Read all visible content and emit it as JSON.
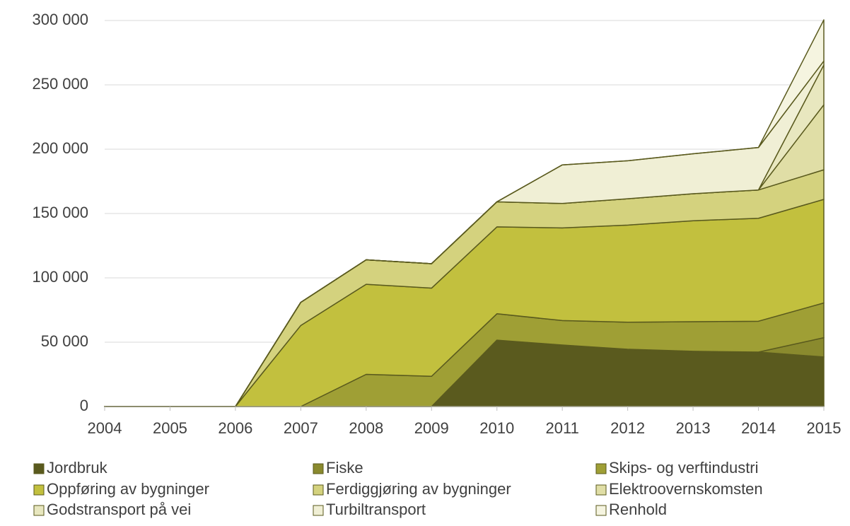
{
  "chart_data": {
    "type": "stacked_area",
    "categories": [
      "2004",
      "2005",
      "2006",
      "2007",
      "2008",
      "2009",
      "2010",
      "2011",
      "2012",
      "2013",
      "2014",
      "2015"
    ],
    "series": [
      {
        "name": "Jordbruk",
        "color": "#5a5a1e",
        "values": [
          0,
          0,
          0,
          0,
          0,
          0,
          51600,
          47800,
          44500,
          42900,
          42300,
          38500
        ]
      },
      {
        "name": "Fiske",
        "color": "#8a8a2e",
        "values": [
          0,
          0,
          0,
          0,
          0,
          0,
          0,
          0,
          0,
          0,
          0,
          15000
        ]
      },
      {
        "name": "Skips- og verftindustri",
        "color": "#9f9f35",
        "values": [
          0,
          0,
          0,
          0,
          25000,
          23500,
          20500,
          19000,
          21000,
          23000,
          24000,
          27000
        ]
      },
      {
        "name": "Oppføring av bygninger",
        "color": "#c2c03e",
        "values": [
          0,
          0,
          0,
          63000,
          70000,
          68500,
          67500,
          72000,
          75500,
          78500,
          80000,
          80500
        ]
      },
      {
        "name": "Ferdiggjøring av bygninger",
        "color": "#d4d27e",
        "values": [
          0,
          0,
          0,
          18000,
          19000,
          19000,
          19500,
          19000,
          20500,
          21000,
          22000,
          23000
        ]
      },
      {
        "name": "Elektroovernskomsten",
        "color": "#e0dea6",
        "values": [
          0,
          0,
          0,
          0,
          0,
          0,
          0,
          0,
          0,
          0,
          0,
          50500
        ]
      },
      {
        "name": "Godstransport på vei",
        "color": "#e8e7bf",
        "values": [
          0,
          0,
          0,
          0,
          0,
          0,
          0,
          0,
          0,
          0,
          0,
          31000
        ]
      },
      {
        "name": "Turbiltransport",
        "color": "#f0efd5",
        "values": [
          0,
          0,
          0,
          0,
          0,
          0,
          0,
          30000,
          29500,
          31000,
          33000,
          3000
        ]
      },
      {
        "name": "Renhold",
        "color": "#f5f4e0",
        "values": [
          0,
          0,
          0,
          0,
          0,
          0,
          0,
          0,
          0,
          0,
          0,
          32000
        ]
      }
    ],
    "ylim": [
      0,
      300000
    ],
    "yticks": [
      0,
      {
        "value": 50000,
        "label": "50 000"
      },
      {
        "value": 100000,
        "label": "100 000"
      },
      {
        "value": 150000,
        "label": "150 000"
      },
      {
        "value": 200000,
        "label": "200 000"
      },
      {
        "value": 250000,
        "label": "250 000"
      },
      {
        "value": 300000,
        "label": "300 000"
      }
    ],
    "grid": true,
    "legend": "bottom"
  }
}
